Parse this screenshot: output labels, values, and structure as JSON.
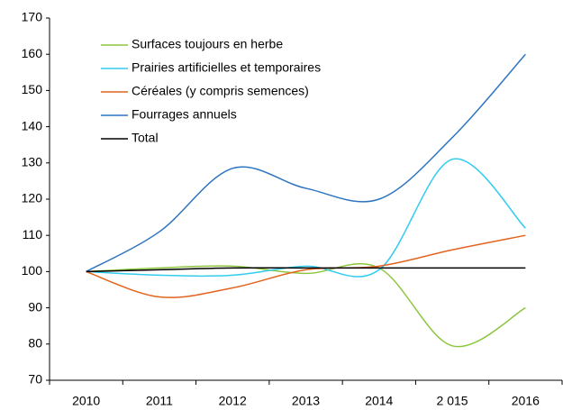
{
  "chart_data": {
    "type": "line",
    "categories": [
      "2010",
      "2011",
      "2012",
      "2013",
      "2014",
      "2 015",
      "2016"
    ],
    "series": [
      {
        "name": "Surfaces toujours en herbe",
        "color": "#8dc63f",
        "values": [
          100,
          101,
          101.5,
          99.5,
          101,
          79.5,
          90
        ]
      },
      {
        "name": "Prairies artificielles et temporaires",
        "color": "#33ccee",
        "values": [
          100,
          99,
          99,
          101.5,
          100.5,
          131,
          112
        ]
      },
      {
        "name": "Céréales (y compris semences)",
        "color": "#e2641e",
        "values": [
          100,
          93,
          95.5,
          100.5,
          101.5,
          106,
          110
        ]
      },
      {
        "name": "Fourrages annuels",
        "color": "#2e75c0",
        "values": [
          100,
          111,
          128.5,
          123,
          120,
          137,
          160
        ]
      },
      {
        "name": "Total",
        "color": "#000000",
        "values": [
          100,
          100.5,
          101,
          101,
          101,
          101,
          101
        ]
      }
    ],
    "ylim": [
      70,
      170
    ],
    "yticks": [
      70,
      80,
      90,
      100,
      110,
      120,
      130,
      140,
      150,
      160,
      170
    ]
  }
}
